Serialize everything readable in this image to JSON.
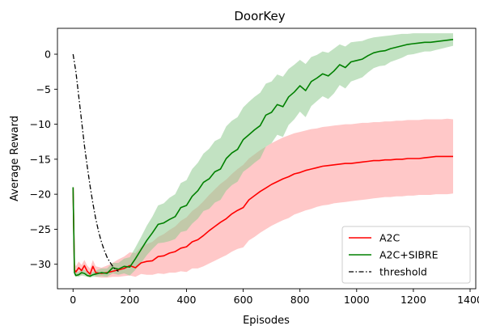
{
  "chart_data": {
    "type": "line",
    "title": "DoorKey",
    "xlabel": "Episodes",
    "ylabel": "Average Reward",
    "xlim": [
      -55,
      1420
    ],
    "ylim": [
      -33.5,
      3.7
    ],
    "xticks": [
      0,
      200,
      400,
      600,
      800,
      1000,
      1200,
      1400
    ],
    "xtick_labels": [
      "0",
      "200",
      "400",
      "600",
      "800",
      "1000",
      "1200",
      "1400"
    ],
    "yticks": [
      0,
      -5,
      -10,
      -15,
      -20,
      -25,
      -30
    ],
    "ytick_labels": [
      "0",
      "−5",
      "−10",
      "−15",
      "−20",
      "−25",
      "−30"
    ],
    "grid": false,
    "legend_position": "bottom-right",
    "colors": {
      "a2c": "#ff0000",
      "a2c_band": "#ff9a9a",
      "sibre": "#008000",
      "sibre_band": "#8fca8f",
      "threshold": "#000000"
    },
    "series": [
      {
        "name": "A2C",
        "x": [
          0,
          5,
          10,
          20,
          30,
          40,
          50,
          60,
          70,
          80,
          100,
          120,
          140,
          160,
          180,
          200,
          220,
          240,
          260,
          280,
          300,
          320,
          340,
          360,
          380,
          400,
          420,
          440,
          460,
          480,
          500,
          520,
          540,
          560,
          580,
          600,
          620,
          640,
          660,
          680,
          700,
          720,
          740,
          760,
          780,
          800,
          820,
          840,
          860,
          880,
          900,
          920,
          940,
          960,
          980,
          1000,
          1020,
          1040,
          1060,
          1080,
          1100,
          1120,
          1140,
          1160,
          1180,
          1200,
          1220,
          1240,
          1260,
          1280,
          1300,
          1320,
          1340
        ],
        "y": [
          -19,
          -30.8,
          -31.1,
          -30.5,
          -30.9,
          -30.2,
          -31,
          -31.4,
          -30.3,
          -31.2,
          -31.3,
          -31.2,
          -31,
          -30.8,
          -30.6,
          -30.2,
          -30.5,
          -29.8,
          -29.6,
          -29.5,
          -28.9,
          -28.8,
          -28.4,
          -28.2,
          -27.7,
          -27.5,
          -26.8,
          -26.5,
          -25.9,
          -25.2,
          -24.6,
          -24,
          -23.5,
          -22.8,
          -22.3,
          -21.9,
          -20.8,
          -20.2,
          -19.6,
          -19.1,
          -18.6,
          -18.2,
          -17.8,
          -17.5,
          -17.1,
          -16.9,
          -16.6,
          -16.4,
          -16.2,
          -16,
          -15.9,
          -15.8,
          -15.7,
          -15.6,
          -15.6,
          -15.5,
          -15.4,
          -15.3,
          -15.2,
          -15.2,
          -15.1,
          -15.1,
          -15,
          -15,
          -14.9,
          -14.9,
          -14.9,
          -14.8,
          -14.7,
          -14.6,
          -14.6,
          -14.6,
          -14.6
        ],
        "band_upper": [
          -19,
          -29.8,
          -30.3,
          -29.6,
          -30.1,
          -29.4,
          -30.2,
          -30.6,
          -29.4,
          -30.3,
          -30.5,
          -30.2,
          -29.8,
          -29.3,
          -28.9,
          -28.3,
          -28.4,
          -27.5,
          -27.1,
          -26.8,
          -26.1,
          -25.7,
          -25.1,
          -24.6,
          -23.8,
          -23.3,
          -22.4,
          -21.8,
          -21,
          -20.1,
          -19.3,
          -18.5,
          -17.9,
          -17.1,
          -16.4,
          -15.8,
          -14.9,
          -14.3,
          -13.7,
          -13.2,
          -12.7,
          -12.3,
          -11.9,
          -11.6,
          -11.3,
          -11.1,
          -10.9,
          -10.7,
          -10.6,
          -10.4,
          -10.3,
          -10.2,
          -10.1,
          -10,
          -10,
          -9.9,
          -9.8,
          -9.8,
          -9.7,
          -9.7,
          -9.6,
          -9.6,
          -9.5,
          -9.5,
          -9.4,
          -9.4,
          -9.4,
          -9.3,
          -9.3,
          -9.3,
          -9.3,
          -9.2,
          -9.3
        ],
        "band_lower": [
          -19,
          -31.5,
          -31.7,
          -31.3,
          -31.6,
          -31,
          -31.7,
          -31.9,
          -31.2,
          -31.8,
          -31.9,
          -31.9,
          -31.8,
          -31.8,
          -31.7,
          -31.6,
          -31.8,
          -31.4,
          -31.5,
          -31.5,
          -31.3,
          -31.4,
          -31.2,
          -31.2,
          -31,
          -31.1,
          -30.6,
          -30.6,
          -30.3,
          -29.9,
          -29.5,
          -29.1,
          -28.7,
          -28.2,
          -27.8,
          -27.6,
          -26.6,
          -26.1,
          -25.5,
          -25,
          -24.5,
          -24.1,
          -23.7,
          -23.4,
          -22.9,
          -22.6,
          -22.3,
          -22.1,
          -21.8,
          -21.6,
          -21.5,
          -21.3,
          -21.2,
          -21.1,
          -21,
          -20.9,
          -20.8,
          -20.7,
          -20.6,
          -20.5,
          -20.4,
          -20.4,
          -20.3,
          -20.3,
          -20.2,
          -20.2,
          -20.1,
          -20.1,
          -20.1,
          -20,
          -20,
          -20,
          -19.9
        ]
      },
      {
        "name": "A2C+SIBRE",
        "x": [
          0,
          5,
          10,
          20,
          30,
          40,
          50,
          60,
          70,
          80,
          100,
          120,
          140,
          160,
          180,
          200,
          220,
          240,
          260,
          280,
          300,
          320,
          340,
          360,
          380,
          400,
          420,
          440,
          460,
          480,
          500,
          520,
          540,
          560,
          580,
          600,
          620,
          640,
          660,
          680,
          700,
          720,
          740,
          760,
          780,
          800,
          820,
          840,
          860,
          880,
          900,
          920,
          940,
          960,
          980,
          1000,
          1020,
          1040,
          1060,
          1080,
          1100,
          1120,
          1140,
          1160,
          1180,
          1200,
          1220,
          1240,
          1260,
          1280,
          1300,
          1320,
          1340
        ],
        "y": [
          -19,
          -31.2,
          -31.6,
          -31.5,
          -31.2,
          -31.3,
          -31.6,
          -31.7,
          -31.5,
          -31.4,
          -31.2,
          -31.3,
          -30.5,
          -30.7,
          -30.3,
          -30.4,
          -29.2,
          -27.9,
          -26.6,
          -25.5,
          -24.3,
          -24.1,
          -23.6,
          -23.2,
          -21.9,
          -21.6,
          -20.3,
          -19.5,
          -18.3,
          -17.8,
          -16.8,
          -16.4,
          -14.9,
          -14.1,
          -13.6,
          -12.2,
          -11.5,
          -10.8,
          -10.2,
          -8.7,
          -8.3,
          -7.2,
          -7.5,
          -6.1,
          -5.4,
          -4.5,
          -5.2,
          -3.9,
          -3.4,
          -2.8,
          -3.1,
          -2.4,
          -1.5,
          -1.9,
          -1.1,
          -0.9,
          -0.7,
          -0.2,
          0.2,
          0.4,
          0.5,
          0.8,
          1,
          1.2,
          1.4,
          1.5,
          1.6,
          1.7,
          1.7,
          1.8,
          1.9,
          2,
          2.1
        ],
        "band_upper": [
          -19,
          -30.8,
          -31.2,
          -31.1,
          -30.8,
          -30.8,
          -31.2,
          -31.3,
          -31.1,
          -30.9,
          -30.6,
          -30.6,
          -29.8,
          -29.8,
          -29.2,
          -29,
          -27.6,
          -26.1,
          -24.5,
          -23.2,
          -21.6,
          -21.3,
          -20.5,
          -20,
          -18.4,
          -18,
          -16.4,
          -15.5,
          -14.2,
          -13.5,
          -12.4,
          -12,
          -10.3,
          -9.5,
          -9,
          -7.6,
          -6.8,
          -6.1,
          -5.5,
          -4.2,
          -3.9,
          -2.9,
          -3.2,
          -2.1,
          -1.5,
          -0.8,
          -1.4,
          -0.4,
          -0.1,
          0.4,
          0.2,
          0.8,
          1.4,
          1.1,
          1.7,
          1.8,
          1.9,
          2.2,
          2.4,
          2.5,
          2.6,
          2.7,
          2.8,
          2.9,
          2.9,
          3,
          3,
          3,
          3,
          3,
          3,
          3,
          3
        ],
        "band_lower": [
          -19,
          -31.6,
          -31.8,
          -31.8,
          -31.6,
          -31.7,
          -31.8,
          -31.9,
          -31.8,
          -31.8,
          -31.7,
          -31.8,
          -31.3,
          -31.5,
          -31.3,
          -31.6,
          -30.8,
          -29.8,
          -28.7,
          -27.8,
          -27,
          -26.9,
          -26.7,
          -26.4,
          -25.4,
          -25.2,
          -24.2,
          -23.5,
          -22.4,
          -22.1,
          -21.2,
          -20.8,
          -19.5,
          -18.7,
          -18.2,
          -16.8,
          -16.2,
          -15.5,
          -14.9,
          -13.2,
          -12.7,
          -11.5,
          -11.8,
          -10.1,
          -9.3,
          -8.2,
          -9,
          -7.4,
          -6.7,
          -6,
          -6.4,
          -5.6,
          -4.4,
          -4.9,
          -3.9,
          -3.6,
          -3.3,
          -2.6,
          -2,
          -1.7,
          -1.6,
          -1.1,
          -0.8,
          -0.5,
          -0.1,
          0,
          0.2,
          0.4,
          0.4,
          0.6,
          0.8,
          1,
          1.2
        ]
      },
      {
        "name": "threshold",
        "x": [
          0,
          10,
          20,
          30,
          40,
          50,
          60,
          70,
          80,
          90,
          100,
          110,
          120,
          130,
          140,
          150,
          160
        ],
        "y": [
          0,
          -2.5,
          -6,
          -9.5,
          -13,
          -16,
          -18.8,
          -21.3,
          -23.5,
          -25.3,
          -26.8,
          -28,
          -29,
          -29.7,
          -30.3,
          -30.8,
          -31
        ]
      }
    ]
  }
}
